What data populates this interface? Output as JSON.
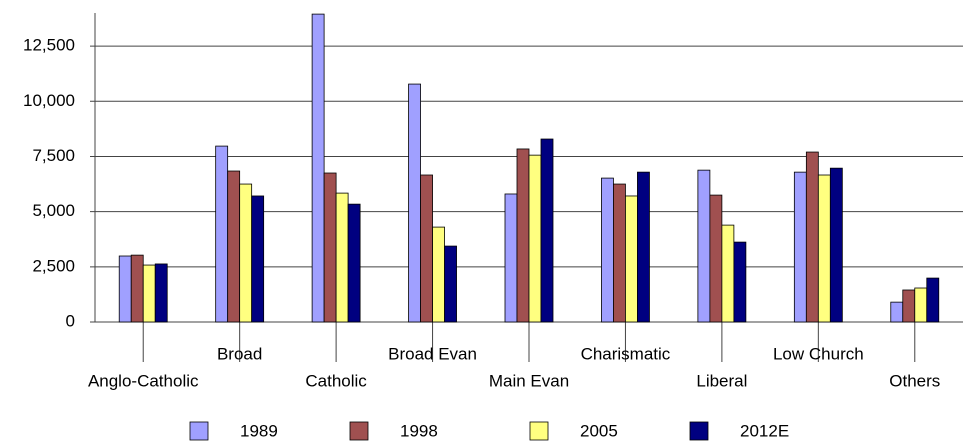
{
  "chart_data": {
    "type": "bar",
    "categories": [
      "Anglo-Catholic",
      "Broad",
      "Catholic",
      "Broad Evan",
      "Main Evan",
      "Charismatic",
      "Liberal",
      "Low Church",
      "Others"
    ],
    "series": [
      {
        "name": "1989",
        "color": "#a0a0ff",
        "values": [
          2990,
          7970,
          13950,
          10780,
          5800,
          6520,
          6880,
          6790,
          900
        ]
      },
      {
        "name": "1998",
        "color": "#a05050",
        "values": [
          3030,
          6840,
          6750,
          6660,
          7840,
          6250,
          5750,
          7700,
          1450
        ]
      },
      {
        "name": "2005",
        "color": "#ffff80",
        "values": [
          2580,
          6250,
          5840,
          4300,
          7560,
          5710,
          4390,
          6660,
          1540
        ]
      },
      {
        "name": "2012E",
        "color": "#000080",
        "values": [
          2630,
          5710,
          5340,
          3440,
          8290,
          6790,
          3620,
          6970,
          1990
        ]
      }
    ],
    "ylim": [
      0,
      14000
    ],
    "yticks": [
      0,
      {
        "value": 2500,
        "label": "2,500"
      },
      {
        "value": 5000,
        "label": "5,000"
      },
      {
        "value": 7500,
        "label": "7,500"
      },
      {
        "value": 10000,
        "label": "10,000"
      },
      {
        "value": 12500,
        "label": "12,500"
      }
    ],
    "grid": true,
    "legend": "bottom"
  }
}
